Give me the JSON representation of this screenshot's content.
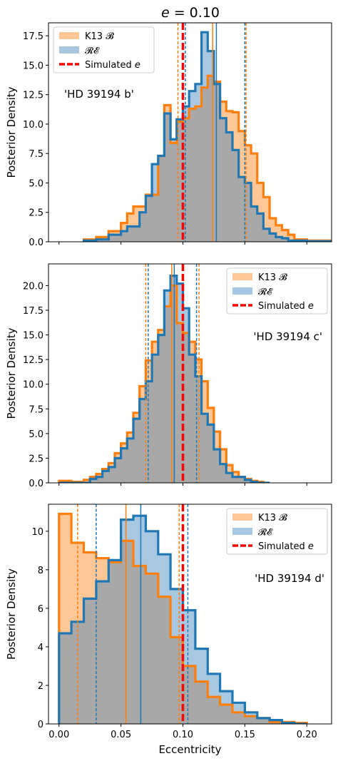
{
  "figure_title": "e = 0.10",
  "colors": {
    "k13_line": "#ff7f0e",
    "k13_fill": "#ffc795",
    "re_line": "#1f77b4",
    "re_fill": "#a8c8e1",
    "overlap_fill": "#a8a8a8",
    "simulated": "#ff0000"
  },
  "chart_data": [
    {
      "type": "histogram",
      "annotation": "'HD 39194 b'",
      "xlabel": "",
      "ylabel": "Posterior Density",
      "xlim": [
        -0.0085,
        0.22
      ],
      "ylim": [
        0,
        18.6
      ],
      "yticks": [
        0.0,
        2.5,
        5.0,
        7.5,
        10.0,
        12.5,
        15.0,
        17.5
      ],
      "xticks": [
        0.0,
        0.05,
        0.1,
        0.15,
        0.2
      ],
      "xtick_labels_visible": false,
      "legend": {
        "position": "top-left",
        "entries": [
          "K13 𝓑",
          "𝓡𝓔",
          "Simulated e"
        ]
      },
      "bin_edges": [
        0.02,
        0.03,
        0.04,
        0.05,
        0.055,
        0.06,
        0.065,
        0.07,
        0.075,
        0.08,
        0.085,
        0.09,
        0.095,
        0.1,
        0.105,
        0.11,
        0.115,
        0.12,
        0.125,
        0.13,
        0.135,
        0.14,
        0.145,
        0.15,
        0.155,
        0.16,
        0.165,
        0.17,
        0.175,
        0.18,
        0.185,
        0.19,
        0.2,
        0.22
      ],
      "series": [
        {
          "name": "K13 𝓑",
          "values": [
            0.2,
            0.4,
            0.9,
            1.6,
            2.4,
            3.0,
            3.0,
            4.0,
            4.0,
            7.3,
            11.6,
            8.4,
            10.2,
            10.5,
            11.3,
            11.5,
            13.1,
            14.1,
            13.6,
            11.9,
            11.1,
            11.0,
            9.4,
            8.2,
            7.5,
            5.0,
            3.8,
            2.0,
            1.4,
            1.0,
            0.6,
            0.2,
            0.1
          ]
        },
        {
          "name": "𝓡𝓔",
          "values": [
            0.1,
            0.2,
            0.6,
            0.9,
            1.3,
            1.3,
            2.5,
            3.9,
            6.6,
            7.3,
            10.9,
            8.7,
            10.4,
            11.5,
            12.8,
            13.4,
            17.8,
            16.2,
            13.4,
            10.5,
            9.3,
            7.8,
            5.5,
            5.0,
            3.0,
            2.4,
            1.1,
            0.7,
            0.4,
            0.3,
            0.1,
            0.1,
            0.05
          ]
        }
      ],
      "k13_median": 0.124,
      "k13_interval": [
        0.096,
        0.151
      ],
      "re_median": 0.127,
      "re_interval": [
        0.102,
        0.15
      ],
      "simulated_e": 0.1
    },
    {
      "type": "histogram",
      "annotation": "'HD 39194 c'",
      "xlabel": "",
      "ylabel": "Posterior Density",
      "xlim": [
        -0.0085,
        0.22
      ],
      "ylim": [
        0,
        22.2
      ],
      "yticks": [
        0.0,
        2.5,
        5.0,
        7.5,
        10.0,
        12.5,
        15.0,
        17.5,
        20.0
      ],
      "xticks": [
        0.0,
        0.05,
        0.1,
        0.15,
        0.2
      ],
      "xtick_labels_visible": false,
      "legend": {
        "position": "top-right",
        "entries": [
          "K13 𝓑",
          "𝓡𝓔",
          "Simulated e"
        ]
      },
      "bin_edges": [
        0.0,
        0.01,
        0.02,
        0.025,
        0.03,
        0.035,
        0.04,
        0.045,
        0.05,
        0.055,
        0.06,
        0.065,
        0.07,
        0.075,
        0.08,
        0.085,
        0.09,
        0.095,
        0.1,
        0.105,
        0.11,
        0.115,
        0.12,
        0.125,
        0.13,
        0.135,
        0.14,
        0.145,
        0.15,
        0.155,
        0.16,
        0.165,
        0.17
      ],
      "series": [
        {
          "name": "K13 𝓑",
          "values": [
            0.2,
            0.1,
            0.3,
            0.6,
            0.9,
            1.4,
            2.0,
            3.0,
            4.0,
            5.1,
            7.1,
            9.8,
            12.4,
            14.3,
            15.5,
            17.9,
            20.0,
            16.2,
            15.2,
            14.3,
            12.5,
            10.3,
            7.6,
            5.2,
            3.4,
            1.8,
            1.1,
            0.6,
            0.4,
            0.2,
            0.1,
            0.0
          ]
        },
        {
          "name": "𝓡𝓔",
          "values": [
            0.0,
            0.0,
            0.0,
            0.4,
            0.6,
            1.2,
            1.6,
            2.5,
            3.5,
            4.5,
            6.5,
            8.5,
            10.3,
            13.0,
            15.0,
            19.5,
            21.0,
            20.2,
            17.7,
            13.0,
            10.8,
            7.0,
            5.9,
            3.4,
            1.9,
            1.0,
            0.6,
            0.6,
            0.3,
            0.1,
            0.0,
            0.0
          ]
        }
      ],
      "k13_median": 0.091,
      "k13_interval": [
        0.07,
        0.113
      ],
      "re_median": 0.093,
      "re_interval": [
        0.072,
        0.111
      ],
      "simulated_e": 0.1
    },
    {
      "type": "histogram",
      "annotation": "'HD 39194 d'",
      "xlabel": "Eccentricity",
      "ylabel": "Posterior Density",
      "xlim": [
        -0.0085,
        0.22
      ],
      "ylim": [
        0,
        11.4
      ],
      "yticks": [
        0,
        2,
        4,
        6,
        8,
        10
      ],
      "xticks": [
        0.0,
        0.05,
        0.1,
        0.15,
        0.2
      ],
      "xtick_labels_visible": true,
      "legend": {
        "position": "top-right",
        "entries": [
          "K13 𝓑",
          "𝓡𝓔",
          "Simulated e"
        ]
      },
      "bin_edges": [
        0.0,
        0.01,
        0.02,
        0.03,
        0.04,
        0.05,
        0.06,
        0.07,
        0.08,
        0.09,
        0.1,
        0.11,
        0.12,
        0.13,
        0.14,
        0.15,
        0.16,
        0.17,
        0.18,
        0.19,
        0.2
      ],
      "series": [
        {
          "name": "K13 𝓑",
          "values": [
            10.9,
            9.4,
            8.9,
            8.6,
            8.4,
            9.5,
            8.2,
            7.8,
            6.6,
            4.5,
            3.0,
            2.2,
            1.4,
            1.0,
            0.6,
            0.4,
            0.3,
            0.1,
            0.1,
            0.05
          ]
        },
        {
          "name": "𝓡𝓔",
          "values": [
            4.7,
            5.3,
            6.5,
            7.4,
            8.5,
            10.6,
            10.8,
            10.0,
            8.8,
            7.0,
            5.9,
            3.9,
            2.6,
            1.7,
            1.1,
            0.6,
            0.3,
            0.2,
            0.05,
            0.0
          ]
        }
      ],
      "k13_median": 0.054,
      "k13_interval": [
        0.015,
        0.097
      ],
      "re_median": 0.066,
      "re_interval": [
        0.03,
        0.104
      ],
      "simulated_e": 0.1
    }
  ]
}
